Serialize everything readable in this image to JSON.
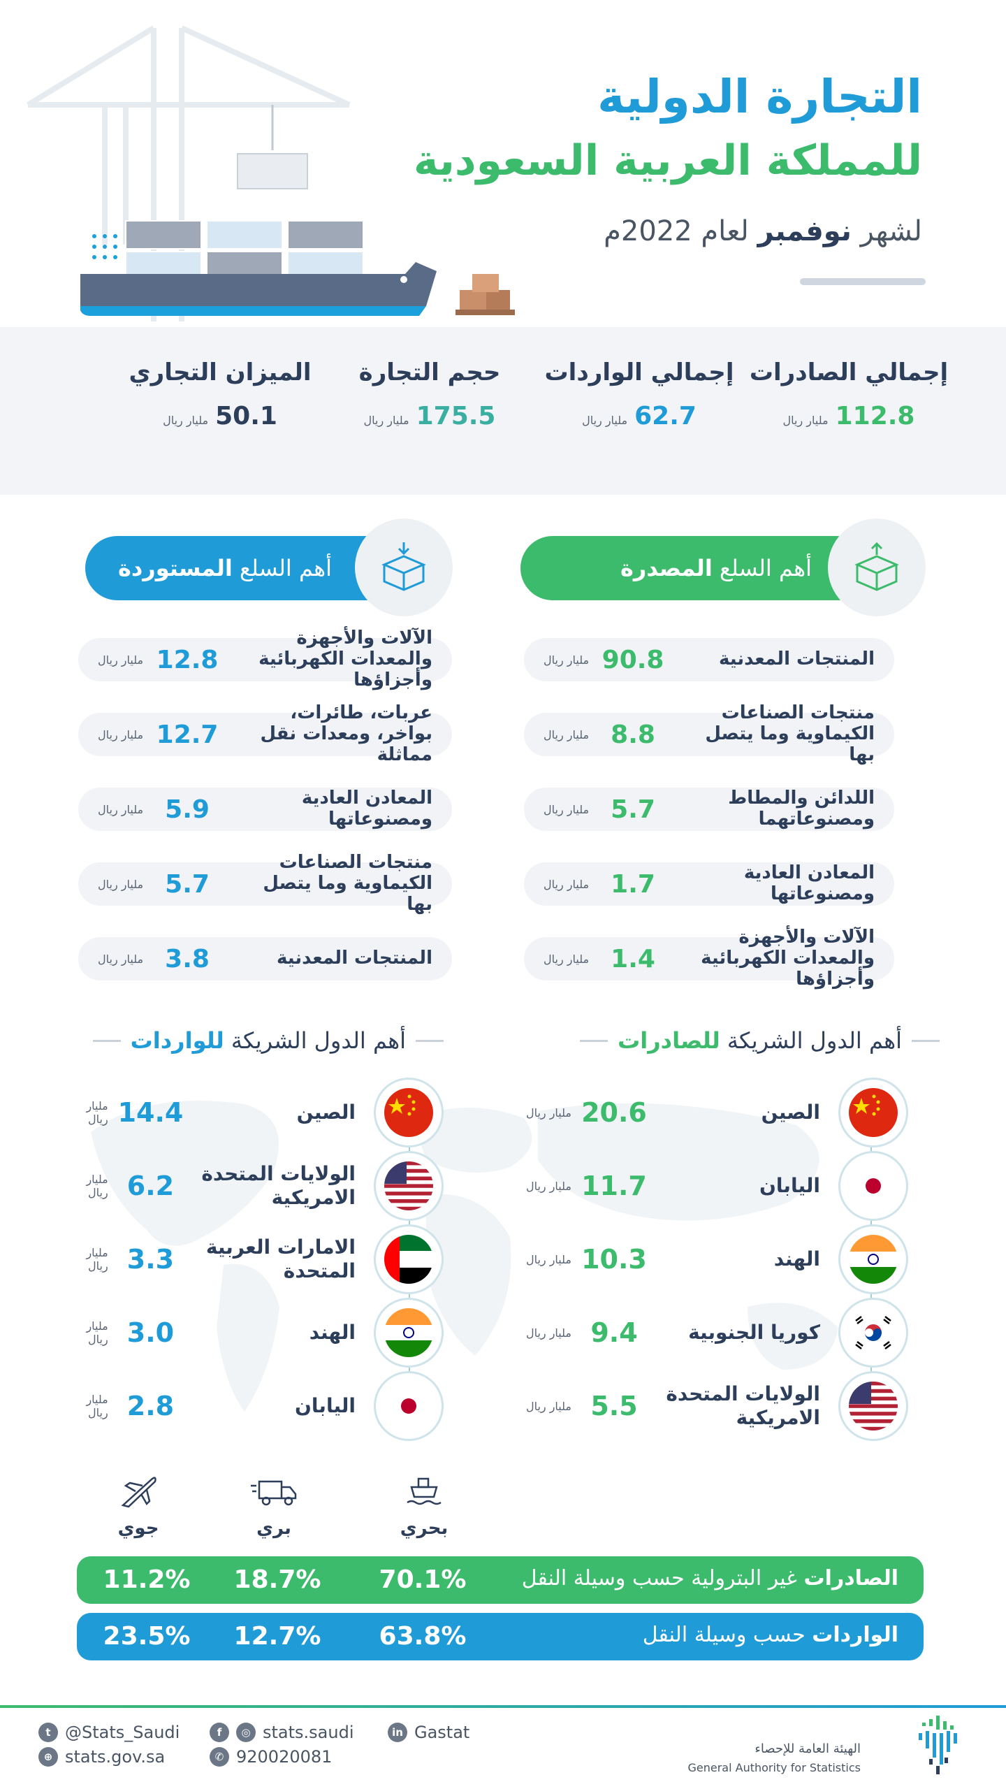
{
  "header": {
    "title_line1": "التجارة الدولية",
    "title_line2": "للمملكة العربية السعودية",
    "subtitle_prefix": "لشهر",
    "subtitle_month": "نوفمبر",
    "subtitle_suffix": "لعام 2022م"
  },
  "colors": {
    "green": "#3dbb6d",
    "blue": "#1f9bd7",
    "navy": "#2c3e5a"
  },
  "stats": {
    "unit": "مليار ريال",
    "exports_label": "إجمالي الصادرات",
    "exports_value": "112.8",
    "imports_label": "إجمالي الواردات",
    "imports_value": "62.7",
    "volume_label": "حجم التجارة",
    "volume_value": "175.5",
    "balance_label": "الميزان التجاري",
    "balance_value": "50.1"
  },
  "exported_goods": {
    "title_prefix": "أهم السلع",
    "title_bold": "المصدرة",
    "items": [
      {
        "name": "المنتجات المعدنية",
        "value": "90.8"
      },
      {
        "name": "منتجات الصناعات الكيماوية وما يتصل بها",
        "value": "8.8"
      },
      {
        "name": "اللدائن والمطاط ومصنوعاتهما",
        "value": "5.7"
      },
      {
        "name": "المعادن العادية ومصنوعاتها",
        "value": "1.7"
      },
      {
        "name": "الآلات والأجهزة والمعدات الكهربائية وأجزاؤها",
        "value": "1.4"
      }
    ]
  },
  "imported_goods": {
    "title_prefix": "أهم السلع",
    "title_bold": "المستوردة",
    "items": [
      {
        "name": "الآلات والأجهزة والمعدات الكهربائية وأجزاؤها",
        "value": "12.8"
      },
      {
        "name": "عربات، طائرات، بواخر، ومعدات نقل مماثلة",
        "value": "12.7"
      },
      {
        "name": "المعادن العادية ومصنوعاتها",
        "value": "5.9"
      },
      {
        "name": "منتجات الصناعات الكيماوية وما يتصل بها",
        "value": "5.7"
      },
      {
        "name": "المنتجات المعدنية",
        "value": "3.8"
      }
    ]
  },
  "export_partners": {
    "title_prefix": "أهم الدول الشريكة",
    "title_bold": "للصادرات",
    "items": [
      {
        "name": "الصين",
        "value": "20.6",
        "flag": "china-flag-icon"
      },
      {
        "name": "اليابان",
        "value": "11.7",
        "flag": "japan-flag-icon"
      },
      {
        "name": "الهند",
        "value": "10.3",
        "flag": "india-flag-icon"
      },
      {
        "name": "كوريا الجنوبية",
        "value": "9.4",
        "flag": "south-korea-flag-icon"
      },
      {
        "name": "الولايات المتحدة الامريكية",
        "value": "5.5",
        "flag": "usa-flag-icon"
      }
    ]
  },
  "import_partners": {
    "title_prefix": "أهم الدول الشريكة",
    "title_bold": "للواردات",
    "items": [
      {
        "name": "الصين",
        "value": "14.4",
        "flag": "china-flag-icon"
      },
      {
        "name": "الولايات المتحدة الامريكية",
        "value": "6.2",
        "flag": "usa-flag-icon"
      },
      {
        "name": "الامارات العربية المتحدة",
        "value": "3.3",
        "flag": "uae-flag-icon"
      },
      {
        "name": "الهند",
        "value": "3.0",
        "flag": "india-flag-icon"
      },
      {
        "name": "اليابان",
        "value": "2.8",
        "flag": "japan-flag-icon"
      }
    ]
  },
  "transport": {
    "sea": "بحري",
    "land": "بري",
    "air": "جوي",
    "exports_bold": "الصادرات",
    "exports_rest": "غير البترولية حسب وسيلة النقل",
    "exports_sea": "70.1%",
    "exports_land": "18.7%",
    "exports_air": "11.2%",
    "imports_bold": "الواردات",
    "imports_rest": "حسب وسيلة النقل",
    "imports_sea": "63.8%",
    "imports_land": "12.7%",
    "imports_air": "23.5%"
  },
  "footer": {
    "twitter": "@Stats_Saudi",
    "facebook_instagram": "stats.saudi",
    "linkedin": "Gastat",
    "website": "stats.gov.sa",
    "phone": "920020081",
    "org_ar": "الهيئة العامة للإحصاء",
    "org_en": "General Authority for Statistics"
  }
}
